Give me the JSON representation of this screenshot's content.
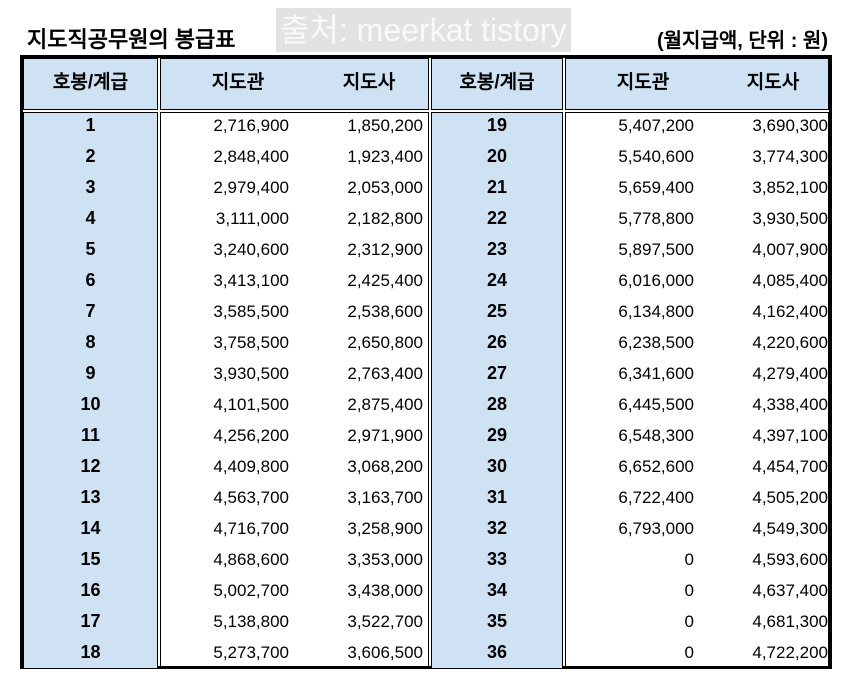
{
  "title": "지도직공무원의 봉급표",
  "unit": "(월지급액, 단위 : 원)",
  "headers": {
    "grade": "호봉/계급",
    "col1": "지도관",
    "col2": "지도사"
  },
  "left_rows": [
    [
      "1",
      "2,716,900",
      "1,850,200"
    ],
    [
      "2",
      "2,848,400",
      "1,923,400"
    ],
    [
      "3",
      "2,979,400",
      "2,053,000"
    ],
    [
      "4",
      "3,111,000",
      "2,182,800"
    ],
    [
      "5",
      "3,240,600",
      "2,312,900"
    ],
    [
      "6",
      "3,413,100",
      "2,425,400"
    ],
    [
      "7",
      "3,585,500",
      "2,538,600"
    ],
    [
      "8",
      "3,758,500",
      "2,650,800"
    ],
    [
      "9",
      "3,930,500",
      "2,763,400"
    ],
    [
      "10",
      "4,101,500",
      "2,875,400"
    ],
    [
      "11",
      "4,256,200",
      "2,971,900"
    ],
    [
      "12",
      "4,409,800",
      "3,068,200"
    ],
    [
      "13",
      "4,563,700",
      "3,163,700"
    ],
    [
      "14",
      "4,716,700",
      "3,258,900"
    ],
    [
      "15",
      "4,868,600",
      "3,353,000"
    ],
    [
      "16",
      "5,002,700",
      "3,438,000"
    ],
    [
      "17",
      "5,138,800",
      "3,522,700"
    ],
    [
      "18",
      "5,273,700",
      "3,606,500"
    ]
  ],
  "right_rows": [
    [
      "19",
      "5,407,200",
      "3,690,300"
    ],
    [
      "20",
      "5,540,600",
      "3,774,300"
    ],
    [
      "21",
      "5,659,400",
      "3,852,100"
    ],
    [
      "22",
      "5,778,800",
      "3,930,500"
    ],
    [
      "23",
      "5,897,500",
      "4,007,900"
    ],
    [
      "24",
      "6,016,000",
      "4,085,400"
    ],
    [
      "25",
      "6,134,800",
      "4,162,400"
    ],
    [
      "26",
      "6,238,500",
      "4,220,600"
    ],
    [
      "27",
      "6,341,600",
      "4,279,400"
    ],
    [
      "28",
      "6,445,500",
      "4,338,400"
    ],
    [
      "29",
      "6,548,300",
      "4,397,100"
    ],
    [
      "30",
      "6,652,600",
      "4,454,700"
    ],
    [
      "31",
      "6,722,400",
      "4,505,200"
    ],
    [
      "32",
      "6,793,000",
      "4,549,300"
    ],
    [
      "33",
      "0",
      "4,593,600"
    ],
    [
      "34",
      "0",
      "4,637,400"
    ],
    [
      "35",
      "0",
      "4,681,300"
    ],
    [
      "36",
      "0",
      "4,722,200"
    ]
  ],
  "watermark": "출처: meerkat tistory",
  "colors": {
    "header_bg": "#cfe2f3",
    "border": "#000000"
  }
}
